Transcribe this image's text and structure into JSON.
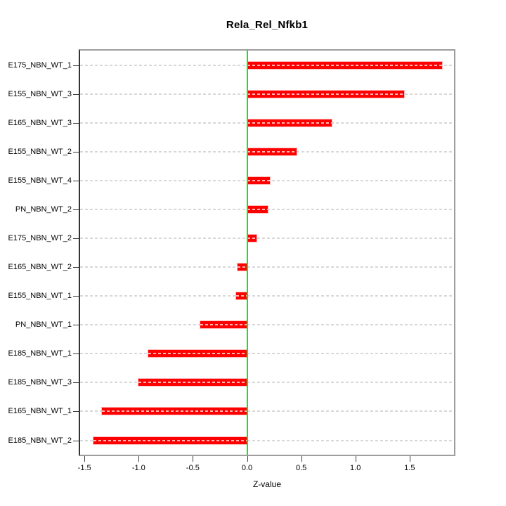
{
  "title": "Rela_Rel_Nfkb1",
  "x_axis_label": "Z-value",
  "colors": {
    "bar": "#ff0000",
    "zero_line": "#00f400",
    "gridline": "#d8d8d8",
    "box_border": "#9e9e9e",
    "axis_line": "#333333"
  },
  "chart_data": {
    "type": "bar",
    "orientation": "horizontal",
    "title": "Rela_Rel_Nfkb1",
    "xlabel": "Z-value",
    "ylabel": "",
    "categories": [
      "E175_NBN_WT_1",
      "E155_NBN_WT_3",
      "E165_NBN_WT_3",
      "E155_NBN_WT_2",
      "E155_NBN_WT_4",
      "PN_NBN_WT_2",
      "E175_NBN_WT_2",
      "E165_NBN_WT_2",
      "E155_NBN_WT_1",
      "PN_NBN_WT_1",
      "E185_NBN_WT_1",
      "E185_NBN_WT_3",
      "E165_NBN_WT_1",
      "E185_NBN_WT_2"
    ],
    "values": [
      1.8,
      1.45,
      0.78,
      0.46,
      0.21,
      0.19,
      0.09,
      -0.09,
      -0.1,
      -0.43,
      -0.91,
      -1.0,
      -1.34,
      -1.42
    ],
    "xlim": [
      -1.55,
      1.93
    ],
    "x_ticks": [
      {
        "label": "-1.5",
        "value": -1.5
      },
      {
        "label": "-1.0",
        "value": -1.0
      },
      {
        "label": "-0.5",
        "value": -0.5
      },
      {
        "label": "0.0",
        "value": 0.0
      },
      {
        "label": "0.5",
        "value": 0.5
      },
      {
        "label": "1.0",
        "value": 1.0
      },
      {
        "label": "1.5",
        "value": 1.5
      }
    ],
    "grid": "dashed horizontal line per category",
    "legend": "none",
    "zero_reference_line": true
  }
}
